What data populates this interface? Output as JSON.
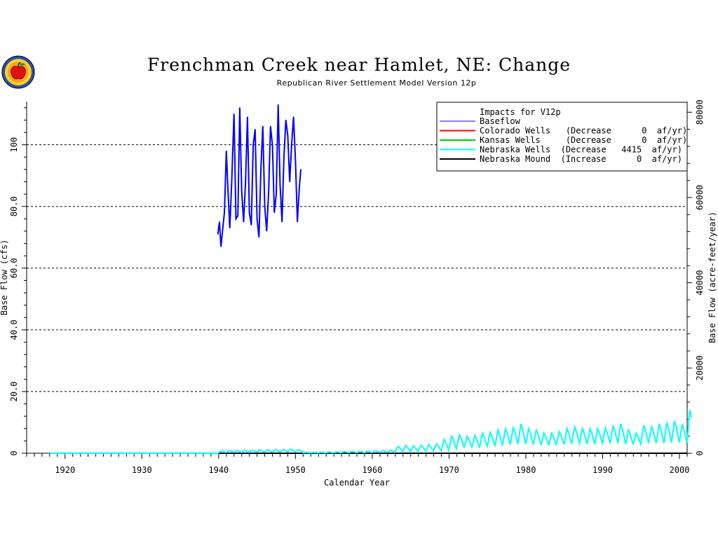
{
  "header": {
    "title": "Frenchman  Creek  near  Hamlet,  NE:  Change",
    "subtitle": "Republican River Settlement Model Version 12p"
  },
  "chart_data": {
    "type": "line",
    "title": "Frenchman  Creek  near  Hamlet,  NE:  Change",
    "subtitle": "Republican River Settlement Model Version 12p",
    "xlabel": "Calendar Year",
    "ylabel": "Base Flow (cfs)",
    "y2label": "Base Flow (acre-feet/year)",
    "xlim": [
      1915,
      2001
    ],
    "ylim": [
      0,
      114
    ],
    "y2lim": [
      0,
      82500
    ],
    "x_ticks": [
      1920,
      1930,
      1940,
      1950,
      1960,
      1970,
      1980,
      1990,
      2000
    ],
    "y_ticks": [
      "0",
      "20.0",
      "40.0",
      "60.0",
      "80.0",
      "100"
    ],
    "y_tick_values": [
      0,
      20,
      40,
      60,
      80,
      100
    ],
    "y2_ticks": [
      "0",
      "20000",
      "40000",
      "60000",
      "80000"
    ],
    "y2_tick_values": [
      0,
      20000,
      40000,
      60000,
      80000
    ],
    "grid": "horizontal dashed at 20, 40, 60, 80, 100",
    "legend_position": "top-right",
    "legend_title": "Impacts for V12p",
    "legend": [
      {
        "label": "Baseflow",
        "color": "#0000ff"
      },
      {
        "label": "Colorado Wells   (Decrease      0  af/yr)",
        "color": "#ff0000"
      },
      {
        "label": "Kansas Wells     (Decrease      0  af/yr)",
        "color": "#00cc00"
      },
      {
        "label": "Nebraska Wells  (Decrease   4415  af/yr)",
        "color": "#00ffff"
      },
      {
        "label": "Nebraska Mound  (Increase      0  af/yr)",
        "color": "#000000"
      }
    ],
    "series": [
      {
        "name": "Baseflow",
        "color": "#0000ff",
        "x": [
          1939.9,
          1940.1,
          1940.3,
          1940.5,
          1940.75,
          1941.0,
          1941.2,
          1941.45,
          1941.7,
          1942.0,
          1942.25,
          1942.5,
          1942.75,
          1943.0,
          1943.25,
          1943.5,
          1943.75,
          1944.0,
          1944.25,
          1944.5,
          1944.75,
          1945.0,
          1945.25,
          1945.5,
          1945.75,
          1946.0,
          1946.25,
          1946.5,
          1946.75,
          1947.0,
          1947.25,
          1947.5,
          1947.75,
          1948.0,
          1948.25,
          1948.5,
          1948.75,
          1949.0,
          1949.25,
          1949.5,
          1949.75,
          1950.0,
          1950.25,
          1950.5,
          1950.7
        ],
        "y": [
          71,
          75,
          67,
          72,
          78,
          98,
          86,
          73,
          88,
          110,
          76,
          77,
          112,
          85,
          75,
          88,
          109,
          78,
          74,
          100,
          105,
          76,
          70,
          92,
          106,
          80,
          72,
          84,
          106,
          100,
          78,
          84,
          113,
          87,
          75,
          96,
          108,
          103,
          88,
          100,
          109,
          95,
          75,
          86,
          92
        ]
      },
      {
        "name": "Colorado Wells",
        "color": "#ff0000",
        "x": [
          1918,
          2001
        ],
        "y": [
          0,
          0
        ]
      },
      {
        "name": "Kansas Wells",
        "color": "#00cc00",
        "x": [
          1918,
          2001
        ],
        "y": [
          0,
          0
        ]
      },
      {
        "name": "Nebraska Wells",
        "color": "#00ffff",
        "x": [
          1918,
          1939.9,
          1940,
          1941,
          1942,
          1943,
          1944,
          1945,
          1946,
          1947,
          1948,
          1949,
          1950,
          1951,
          1952,
          1953,
          1954,
          1955,
          1956,
          1957,
          1958,
          1959,
          1960,
          1961,
          1962,
          1963,
          1964,
          1965,
          1966,
          1967,
          1968,
          1969,
          1970,
          1971,
          1972,
          1973,
          1974,
          1975,
          1976,
          1977,
          1978,
          1979,
          1980,
          1981,
          1982,
          1983,
          1984,
          1985,
          1986,
          1987,
          1988,
          1989,
          1990,
          1991,
          1992,
          1993,
          1994,
          1995,
          1996,
          1997,
          1998,
          1999,
          2000,
          2001
        ],
        "seasonal_peak": [
          0,
          0,
          0.8,
          0.9,
          0.9,
          1.0,
          1.0,
          1.1,
          1.1,
          1.2,
          1.2,
          1.3,
          1.1,
          0.3,
          0.3,
          0.3,
          0.4,
          0.4,
          0.5,
          0.6,
          0.6,
          0.7,
          0.8,
          0.9,
          1.0,
          2.2,
          2.5,
          2.4,
          2.6,
          2.8,
          3.0,
          4.5,
          5.5,
          6.0,
          5.5,
          5.8,
          6.5,
          6.8,
          7.5,
          8.0,
          8.5,
          9.5,
          8.0,
          7.5,
          6.5,
          6.5,
          7.0,
          8.0,
          8.5,
          8.0,
          8.0,
          8.0,
          8.2,
          9.0,
          9.5,
          7.5,
          6.5,
          9.0,
          8.5,
          9.5,
          10.0,
          10.5,
          9.5,
          14.0
        ],
        "seasonal_base": [
          0,
          0,
          0.2,
          0.3,
          0.3,
          0.3,
          0.4,
          0.4,
          0.4,
          0.4,
          0.5,
          0.5,
          0.5,
          0.1,
          0.1,
          0.1,
          0.1,
          0.2,
          0.2,
          0.2,
          0.2,
          0.2,
          0.3,
          0.3,
          0.3,
          0.5,
          0.6,
          0.6,
          0.7,
          0.7,
          0.8,
          1.0,
          1.5,
          2.0,
          2.0,
          2.0,
          2.2,
          2.5,
          2.5,
          3.0,
          3.0,
          3.5,
          3.0,
          3.0,
          2.8,
          2.8,
          3.0,
          3.0,
          3.5,
          3.2,
          3.2,
          3.2,
          3.5,
          3.5,
          3.5,
          3.0,
          3.0,
          3.5,
          3.5,
          3.5,
          3.5,
          4.0,
          3.5,
          4.0
        ]
      },
      {
        "name": "Nebraska Mound",
        "color": "#000000",
        "x": [
          1918,
          2001
        ],
        "y": [
          0,
          0
        ]
      }
    ]
  },
  "colors": {
    "baseflow": "#0000ff",
    "colorado": "#ff0000",
    "kansas": "#00cc00",
    "nebraska_wells": "#00ffff",
    "nebraska_mound": "#000000"
  },
  "logo": {
    "icon": "apple-logo-icon"
  }
}
